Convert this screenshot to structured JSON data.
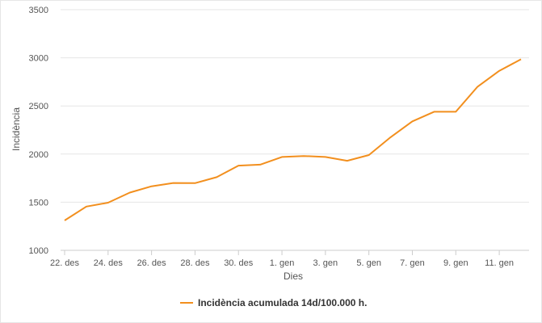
{
  "chart_data": {
    "type": "line",
    "xlabel": "Dies",
    "ylabel": "Incidència",
    "ylim": [
      1000,
      3500
    ],
    "yticks": [
      1000,
      1500,
      2000,
      2500,
      3000,
      3500
    ],
    "grid": true,
    "legend_position": "bottom",
    "x": [
      "22. des",
      "23. des",
      "24. des",
      "25. des",
      "26. des",
      "27. des",
      "28. des",
      "29. des",
      "30. des",
      "31. des",
      "1. gen",
      "2. gen",
      "3. gen",
      "4. gen",
      "5. gen",
      "6. gen",
      "7. gen",
      "8. gen",
      "9. gen",
      "10. gen",
      "11. gen",
      "12. gen"
    ],
    "x_tick_labels": [
      "22. des",
      "24. des",
      "26. des",
      "28. des",
      "30. des",
      "1. gen",
      "3. gen",
      "5. gen",
      "7. gen",
      "9. gen",
      "11. gen"
    ],
    "series": [
      {
        "name": "Incidència acumulada 14d/100.000 h.",
        "color": "#f28f1e",
        "values": [
          1310,
          1455,
          1495,
          1600,
          1665,
          1700,
          1698,
          1760,
          1880,
          1890,
          1970,
          1980,
          1970,
          1930,
          1990,
          2175,
          2340,
          2440,
          2440,
          2700,
          2865,
          2985
        ]
      }
    ]
  }
}
